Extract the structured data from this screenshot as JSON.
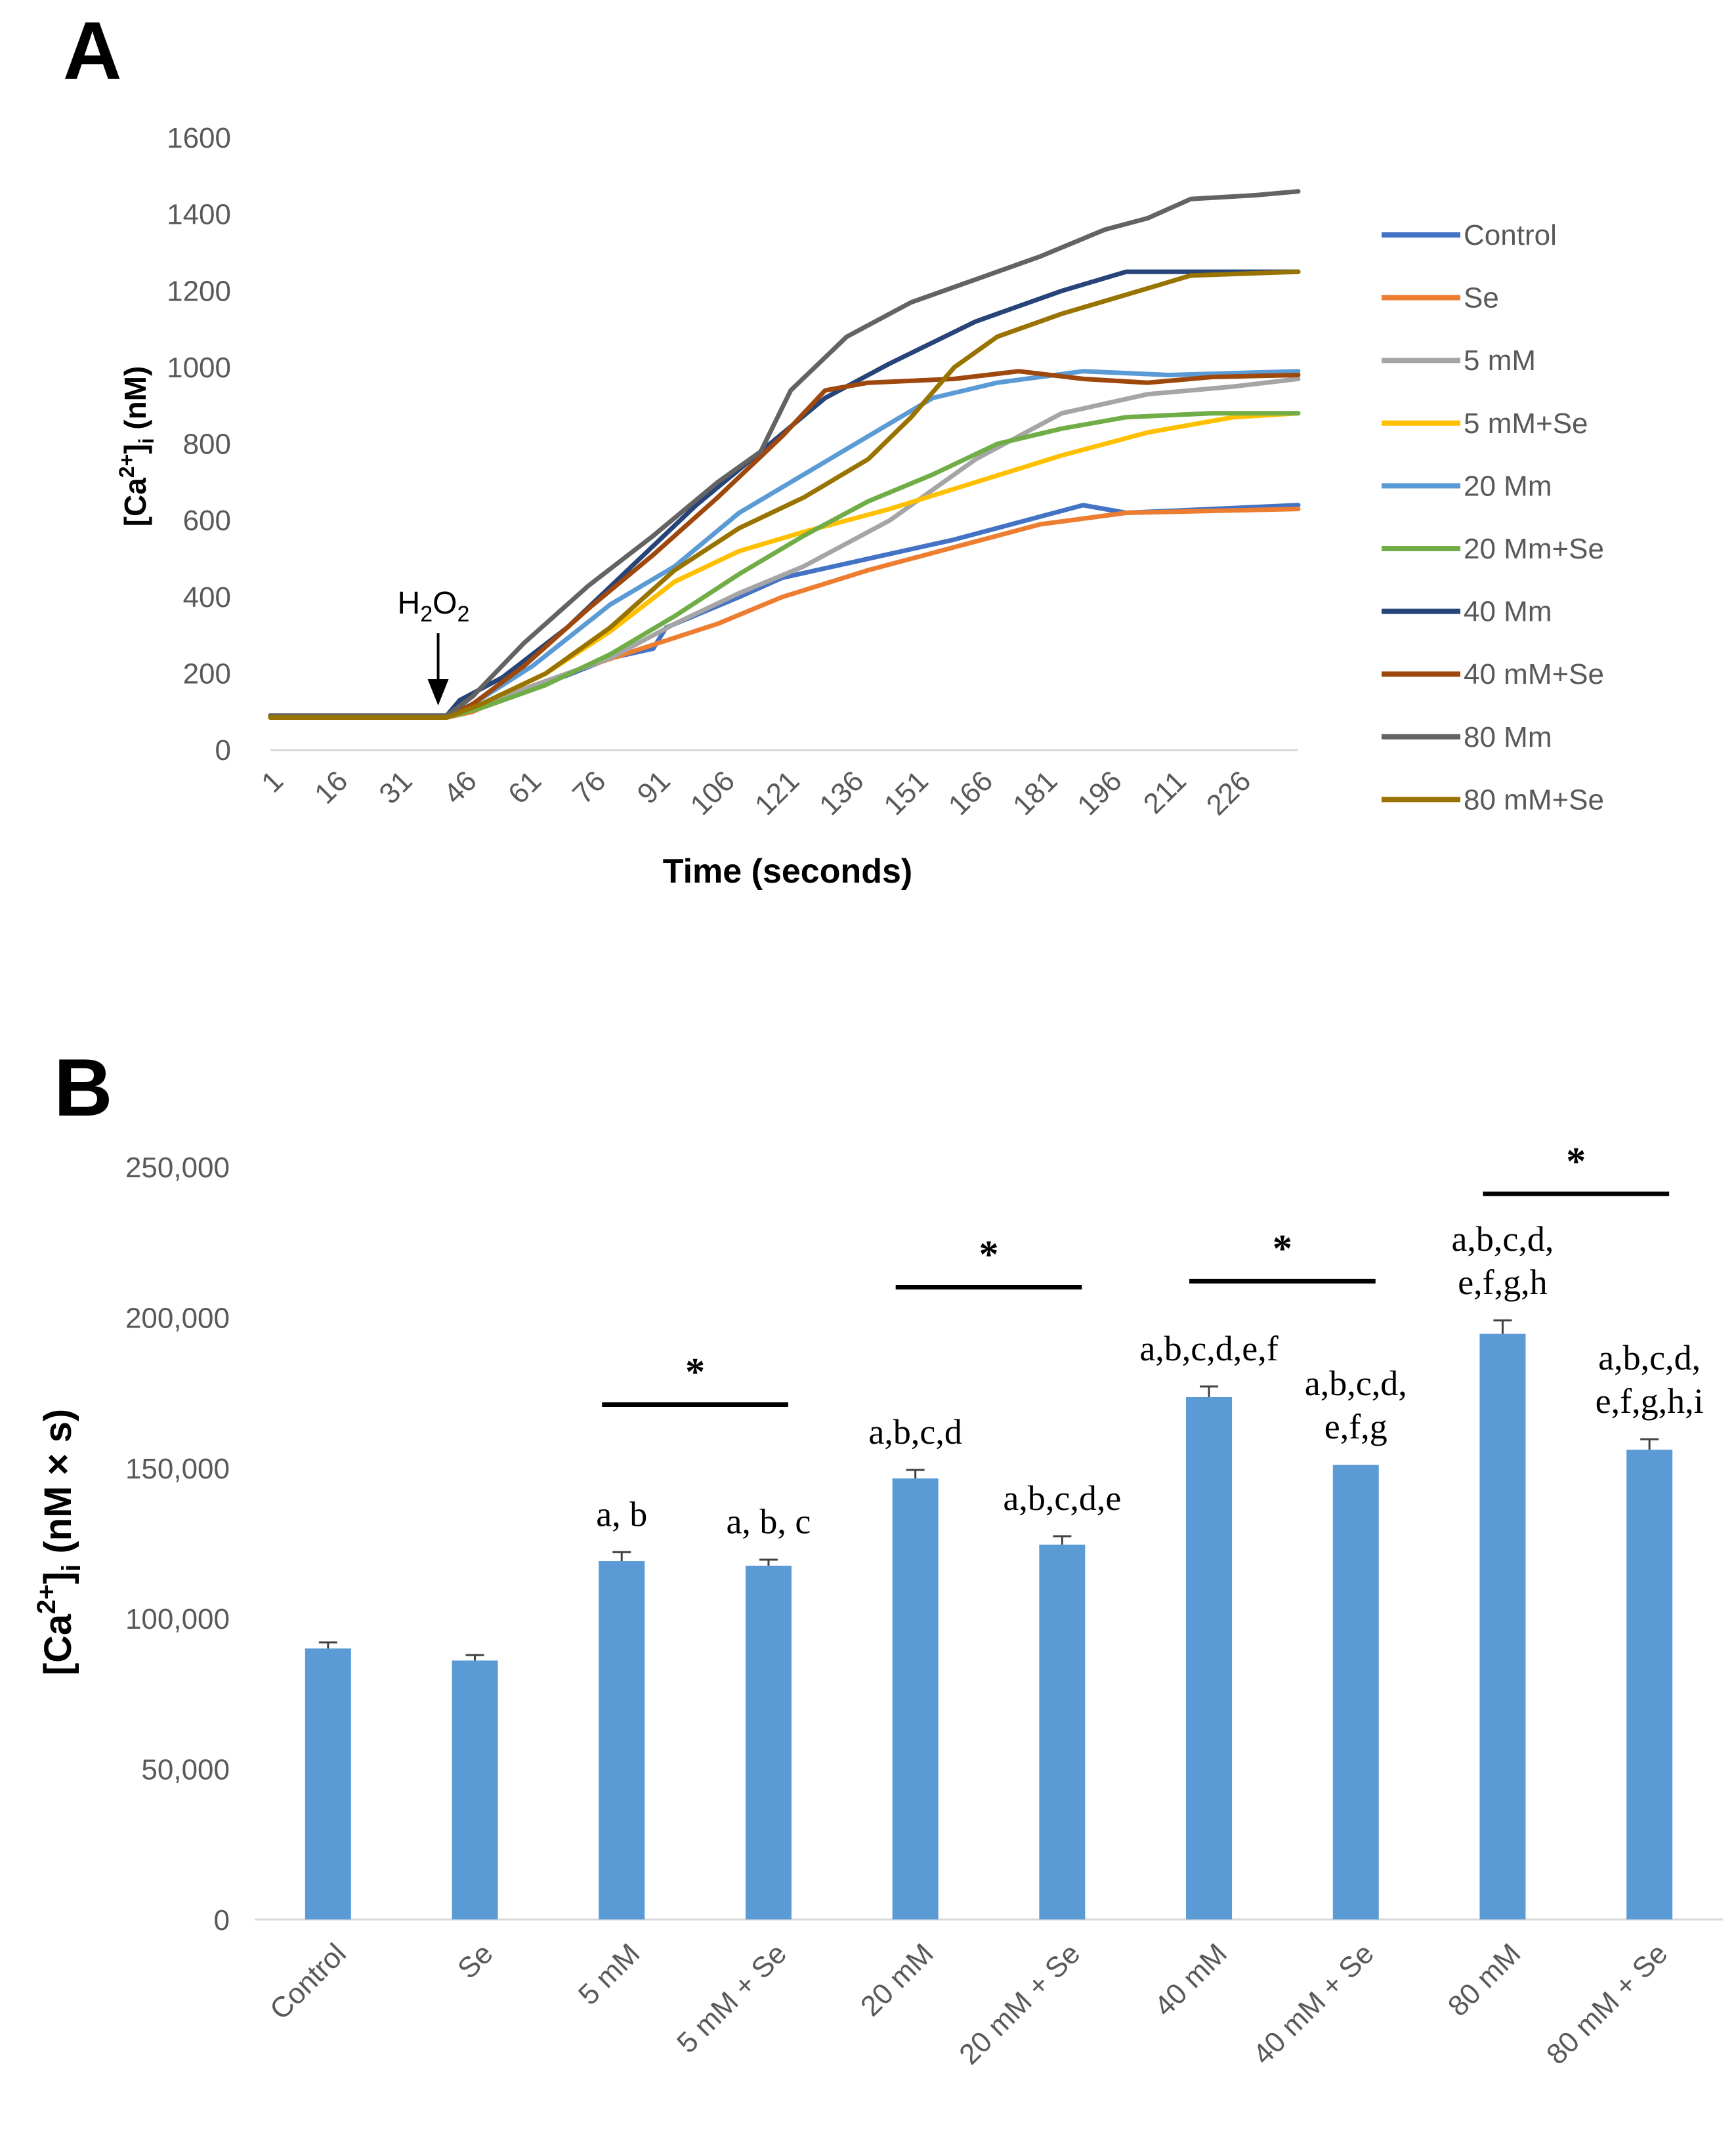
{
  "panels": {
    "a_label": "A",
    "b_label": "B"
  },
  "chart_data": [
    {
      "type": "line",
      "panel": "A",
      "title": "",
      "xlabel": "Time (seconds)",
      "ylabel_main": "[Ca",
      "ylabel_sup": "2+",
      "ylabel_mid": "]",
      "ylabel_sub": "i",
      "ylabel_end": " (nM)",
      "xlim": [
        1,
        240
      ],
      "ylim": [
        0,
        1600
      ],
      "yticks": [
        0,
        200,
        400,
        600,
        800,
        1000,
        1200,
        1400,
        1600
      ],
      "xtick_labels": [
        "1",
        "16",
        "31",
        "46",
        "61",
        "76",
        "91",
        "106",
        "121",
        "136",
        "151",
        "166",
        "181",
        "196",
        "211",
        "226"
      ],
      "annotation": {
        "text_main": "H",
        "sub1": "2",
        "text_mid": "O",
        "sub2": "2",
        "x": 40
      },
      "series": [
        {
          "name": "Control",
          "color": "#4472c4",
          "points": [
            [
              1,
              90
            ],
            [
              20,
              90
            ],
            [
              42,
              90
            ],
            [
              45,
              95
            ],
            [
              55,
              140
            ],
            [
              70,
              195
            ],
            [
              80,
              240
            ],
            [
              90,
              265
            ],
            [
              93,
              320
            ],
            [
              110,
              400
            ],
            [
              120,
              450
            ],
            [
              140,
              500
            ],
            [
              160,
              550
            ],
            [
              175,
              595
            ],
            [
              190,
              640
            ],
            [
              200,
              620
            ],
            [
              220,
              630
            ],
            [
              240,
              640
            ]
          ]
        },
        {
          "name": "Se",
          "color": "#ed7d31",
          "points": [
            [
              1,
              85
            ],
            [
              20,
              85
            ],
            [
              42,
              85
            ],
            [
              48,
              100
            ],
            [
              60,
              160
            ],
            [
              75,
              220
            ],
            [
              90,
              275
            ],
            [
              105,
              330
            ],
            [
              120,
              400
            ],
            [
              140,
              470
            ],
            [
              160,
              530
            ],
            [
              180,
              590
            ],
            [
              200,
              620
            ],
            [
              220,
              625
            ],
            [
              240,
              630
            ]
          ]
        },
        {
          "name": "5 mM",
          "color": "#a5a5a5",
          "points": [
            [
              1,
              85
            ],
            [
              20,
              85
            ],
            [
              42,
              85
            ],
            [
              50,
              120
            ],
            [
              65,
              180
            ],
            [
              80,
              240
            ],
            [
              95,
              330
            ],
            [
              110,
              410
            ],
            [
              125,
              480
            ],
            [
              145,
              600
            ],
            [
              165,
              760
            ],
            [
              185,
              880
            ],
            [
              205,
              930
            ],
            [
              225,
              950
            ],
            [
              240,
              970
            ]
          ]
        },
        {
          "name": "5 mM+Se",
          "color": "#ffc000",
          "points": [
            [
              1,
              85
            ],
            [
              20,
              85
            ],
            [
              42,
              85
            ],
            [
              50,
              120
            ],
            [
              65,
              200
            ],
            [
              80,
              310
            ],
            [
              95,
              440
            ],
            [
              110,
              520
            ],
            [
              125,
              570
            ],
            [
              145,
              630
            ],
            [
              165,
              700
            ],
            [
              185,
              770
            ],
            [
              205,
              830
            ],
            [
              225,
              870
            ],
            [
              240,
              880
            ]
          ]
        },
        {
          "name": "20 Mm",
          "color": "#5b9bd5",
          "points": [
            [
              1,
              90
            ],
            [
              20,
              90
            ],
            [
              42,
              90
            ],
            [
              48,
              120
            ],
            [
              62,
              220
            ],
            [
              80,
              380
            ],
            [
              95,
              480
            ],
            [
              110,
              620
            ],
            [
              125,
              720
            ],
            [
              140,
              820
            ],
            [
              155,
              920
            ],
            [
              170,
              960
            ],
            [
              190,
              990
            ],
            [
              210,
              980
            ],
            [
              240,
              990
            ]
          ]
        },
        {
          "name": "20 Mm+Se",
          "color": "#70ad47",
          "points": [
            [
              1,
              85
            ],
            [
              20,
              85
            ],
            [
              42,
              85
            ],
            [
              50,
              110
            ],
            [
              65,
              170
            ],
            [
              80,
              250
            ],
            [
              95,
              350
            ],
            [
              110,
              460
            ],
            [
              125,
              560
            ],
            [
              140,
              650
            ],
            [
              155,
              720
            ],
            [
              170,
              800
            ],
            [
              185,
              840
            ],
            [
              200,
              870
            ],
            [
              220,
              880
            ],
            [
              240,
              880
            ]
          ]
        },
        {
          "name": "40 Mm",
          "color": "#264478",
          "points": [
            [
              1,
              90
            ],
            [
              20,
              90
            ],
            [
              42,
              90
            ],
            [
              45,
              130
            ],
            [
              55,
              190
            ],
            [
              70,
              320
            ],
            [
              85,
              480
            ],
            [
              100,
              640
            ],
            [
              115,
              780
            ],
            [
              130,
              920
            ],
            [
              145,
              1010
            ],
            [
              165,
              1120
            ],
            [
              185,
              1200
            ],
            [
              200,
              1250
            ],
            [
              220,
              1250
            ],
            [
              240,
              1250
            ]
          ]
        },
        {
          "name": "40 mM+Se",
          "color": "#9e480e",
          "points": [
            [
              1,
              85
            ],
            [
              20,
              85
            ],
            [
              42,
              85
            ],
            [
              48,
              120
            ],
            [
              60,
              220
            ],
            [
              75,
              370
            ],
            [
              90,
              510
            ],
            [
              105,
              660
            ],
            [
              120,
              820
            ],
            [
              130,
              940
            ],
            [
              140,
              960
            ],
            [
              160,
              970
            ],
            [
              175,
              990
            ],
            [
              190,
              970
            ],
            [
              205,
              960
            ],
            [
              220,
              975
            ],
            [
              240,
              980
            ]
          ]
        },
        {
          "name": "80 Mm",
          "color": "#636363",
          "points": [
            [
              1,
              90
            ],
            [
              20,
              90
            ],
            [
              42,
              90
            ],
            [
              48,
              140
            ],
            [
              60,
              280
            ],
            [
              75,
              430
            ],
            [
              90,
              560
            ],
            [
              105,
              700
            ],
            [
              115,
              780
            ],
            [
              122,
              940
            ],
            [
              135,
              1080
            ],
            [
              150,
              1170
            ],
            [
              165,
              1230
            ],
            [
              180,
              1290
            ],
            [
              195,
              1360
            ],
            [
              205,
              1390
            ],
            [
              215,
              1440
            ],
            [
              230,
              1450
            ],
            [
              240,
              1460
            ]
          ]
        },
        {
          "name": "80 mM+Se",
          "color": "#997300",
          "points": [
            [
              1,
              85
            ],
            [
              20,
              85
            ],
            [
              42,
              85
            ],
            [
              50,
              120
            ],
            [
              65,
              200
            ],
            [
              80,
              320
            ],
            [
              95,
              470
            ],
            [
              110,
              580
            ],
            [
              125,
              660
            ],
            [
              140,
              760
            ],
            [
              150,
              870
            ],
            [
              160,
              1000
            ],
            [
              170,
              1080
            ],
            [
              185,
              1140
            ],
            [
              200,
              1190
            ],
            [
              215,
              1240
            ],
            [
              240,
              1250
            ]
          ]
        }
      ]
    },
    {
      "type": "bar",
      "panel": "B",
      "title": "",
      "xlabel": "",
      "ylabel_main": "[Ca",
      "ylabel_sup": "2+",
      "ylabel_mid": "]",
      "ylabel_sub": "i",
      "ylabel_end": " (nM × s)",
      "ylim": [
        0,
        250000
      ],
      "ytick_values": [
        0,
        50000,
        100000,
        150000,
        200000,
        250000
      ],
      "ytick_labels": [
        "0",
        "50,000",
        "100,000",
        "150,000",
        "200,000",
        "250,000"
      ],
      "bar_color": "#5b9bd5",
      "categories": [
        "Control",
        "Se",
        "5 mM",
        "5 mM + Se",
        "20 mM",
        "20 mM + Se",
        "40 mM",
        "40 mM + Se",
        "80 mM",
        "80 mM + Se"
      ],
      "values": [
        90000,
        86000,
        119000,
        117500,
        146500,
        124500,
        173500,
        151000,
        194500,
        156000
      ],
      "errors": [
        2000,
        1800,
        3000,
        2000,
        2800,
        2800,
        3500,
        0,
        4500,
        3500
      ],
      "significance_letters": [
        [],
        [],
        [
          "a, b"
        ],
        [
          "a, b, c"
        ],
        [
          "a,b,c,d"
        ],
        [
          "a,b,c,d,e"
        ],
        [
          "a,b,c,d,e,f"
        ],
        [
          "a,b,c,d,",
          "e,f,g"
        ],
        [
          "a,b,c,d,",
          "e,f,g,h"
        ],
        [
          "a,b,c,d,",
          "e,f,g,h,i"
        ]
      ],
      "comparisons": [
        {
          "from": 2,
          "to": 3,
          "label": "*",
          "level": 171000
        },
        {
          "from": 4,
          "to": 5,
          "label": "*",
          "level": 210000
        },
        {
          "from": 6,
          "to": 7,
          "label": "*",
          "level": 212000
        },
        {
          "from": 8,
          "to": 9,
          "label": "*",
          "level": 241000
        }
      ]
    }
  ]
}
